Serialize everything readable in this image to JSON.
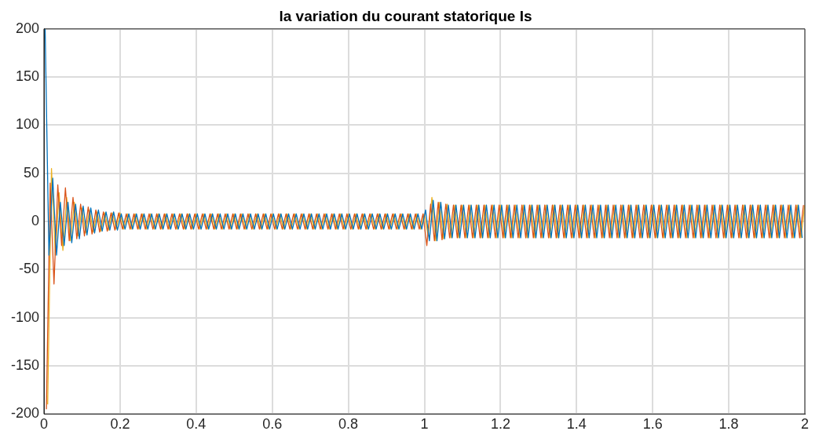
{
  "chart_data": {
    "type": "line",
    "title": "la variation du courant statorique Is",
    "xlim": [
      0,
      2
    ],
    "ylim": [
      -200,
      200
    ],
    "xticks": [
      0,
      0.2,
      0.4,
      0.6,
      0.8,
      1,
      1.2,
      1.4,
      1.6,
      1.8,
      2
    ],
    "yticks": [
      -200,
      -150,
      -100,
      -50,
      0,
      50,
      100,
      150,
      200
    ],
    "grid": true,
    "series": [
      {
        "color": "#0072bd",
        "x": [
          0.003,
          0.013,
          0.023,
          0.033,
          0.043,
          0.053,
          0.063,
          0.073,
          0.083,
          0.093,
          0.103,
          0.113,
          0.123,
          0.133,
          0.143,
          0.153,
          0.163,
          0.173,
          0.183,
          0.193,
          0.203,
          0.213,
          0.223,
          0.233,
          0.243,
          0.253,
          0.263,
          0.273,
          0.283,
          0.293,
          0.303,
          0.313,
          0.323,
          0.333,
          0.343,
          0.353,
          0.363,
          0.373,
          0.383,
          0.393,
          0.403,
          0.413,
          0.423,
          0.433,
          0.443,
          0.453,
          0.463,
          0.473,
          0.483,
          0.493,
          0.503,
          0.513,
          0.523,
          0.533,
          0.543,
          0.553,
          0.563,
          0.573,
          0.583,
          0.593,
          0.603,
          0.613,
          0.623,
          0.633,
          0.643,
          0.653,
          0.663,
          0.673,
          0.683,
          0.693,
          0.703,
          0.713,
          0.723,
          0.733,
          0.743,
          0.753,
          0.763,
          0.773,
          0.783,
          0.793,
          0.803,
          0.813,
          0.823,
          0.833,
          0.843,
          0.853,
          0.863,
          0.873,
          0.883,
          0.893,
          0.903,
          0.913,
          0.923,
          0.933,
          0.943,
          0.953,
          0.963,
          0.973,
          0.983,
          0.993,
          1.003,
          1.013,
          1.023,
          1.033,
          1.043,
          1.053,
          1.063,
          1.073,
          1.083,
          1.093,
          1.103,
          1.113,
          1.123,
          1.133,
          1.143,
          1.153,
          1.163,
          1.173,
          1.183,
          1.193,
          1.203,
          1.213,
          1.223,
          1.233,
          1.243,
          1.253,
          1.263,
          1.273,
          1.283,
          1.293,
          1.303,
          1.313,
          1.323,
          1.333,
          1.343,
          1.353,
          1.363,
          1.373,
          1.383,
          1.393,
          1.403,
          1.413,
          1.423,
          1.433,
          1.443,
          1.453,
          1.463,
          1.473,
          1.483,
          1.493,
          1.503,
          1.513,
          1.523,
          1.533,
          1.543,
          1.553,
          1.563,
          1.573,
          1.583,
          1.593,
          1.603,
          1.613,
          1.623,
          1.633,
          1.643,
          1.653,
          1.663,
          1.673,
          1.683,
          1.693,
          1.703,
          1.713,
          1.723,
          1.733,
          1.743,
          1.753,
          1.763,
          1.773,
          1.783,
          1.793,
          1.803,
          1.813,
          1.823,
          1.833,
          1.843,
          1.853,
          1.863,
          1.873,
          1.883,
          1.893,
          1.903,
          1.913,
          1.923,
          1.933,
          1.943,
          1.953,
          1.963,
          1.973,
          1.983,
          1.993
        ],
        "values": [
          200,
          -35,
          45,
          -35,
          20,
          -25,
          20,
          -22,
          18,
          -18,
          16,
          -14,
          14,
          -12,
          12,
          -10,
          10,
          -9,
          10,
          -9,
          8,
          -8,
          8,
          -8,
          8,
          -8,
          8,
          -8,
          8,
          -8,
          8,
          -8,
          8,
          -8,
          8,
          -8,
          8,
          -8,
          8,
          -8,
          8,
          -8,
          8,
          -8,
          8,
          -8,
          8,
          -8,
          8,
          -8,
          8,
          -8,
          8,
          -8,
          8,
          -8,
          8,
          -8,
          8,
          -8,
          8,
          -8,
          8,
          -8,
          8,
          -8,
          8,
          -8,
          8,
          -8,
          8,
          -8,
          8,
          -8,
          8,
          -8,
          8,
          -8,
          8,
          -8,
          8,
          -8,
          8,
          -8,
          8,
          -8,
          8,
          -8,
          8,
          -8,
          8,
          -8,
          8,
          -8,
          8,
          -8,
          8,
          -8,
          8,
          -8,
          12,
          -20,
          22,
          -20,
          20,
          -18,
          17,
          -17,
          17,
          -17,
          17,
          -17,
          17,
          -17,
          17,
          -17,
          17,
          -17,
          17,
          -17,
          17,
          -17,
          17,
          -17,
          17,
          -17,
          17,
          -17,
          17,
          -17,
          17,
          -17,
          17,
          -17,
          17,
          -17,
          17,
          -17,
          17,
          -17,
          17,
          -17,
          17,
          -17,
          17,
          -17,
          17,
          -17,
          17,
          -17,
          17,
          -17,
          17,
          -17,
          17,
          -17,
          17,
          -17,
          17,
          -17,
          17,
          -17,
          17,
          -17,
          17,
          -17,
          17,
          -17,
          17,
          -17,
          17,
          -17,
          17,
          -17,
          17,
          -17,
          17,
          -17,
          17,
          -17,
          17,
          -17,
          17,
          -17,
          17,
          -17,
          17,
          -17,
          17,
          -17,
          17,
          -17,
          17,
          -17,
          17,
          -17,
          17,
          -17,
          17,
          -17
        ]
      },
      {
        "color": "#d95319",
        "x": [
          0.0063,
          0.0163,
          0.0263,
          0.0363,
          0.0463,
          0.0563,
          0.0663,
          0.0763,
          0.0863,
          0.0963,
          0.1063,
          0.1163,
          0.1263,
          0.1363,
          0.1463,
          0.1563,
          0.1663,
          0.1763,
          0.1863,
          0.1963,
          0.2063,
          0.2163,
          0.2263,
          0.2363,
          0.2463,
          0.2563,
          0.2663,
          0.2763,
          0.2863,
          0.2963,
          0.3063,
          0.3163,
          0.3263,
          0.3363,
          0.3463,
          0.3563,
          0.3663,
          0.3763,
          0.3863,
          0.3963,
          0.4063,
          0.4163,
          0.4263,
          0.4363,
          0.4463,
          0.4563,
          0.4663,
          0.4763,
          0.4863,
          0.4963,
          0.5063,
          0.5163,
          0.5263,
          0.5363,
          0.5463,
          0.5563,
          0.5663,
          0.5763,
          0.5863,
          0.5963,
          0.6063,
          0.6163,
          0.6263,
          0.6363,
          0.6463,
          0.6563,
          0.6663,
          0.6763,
          0.6863,
          0.6963,
          0.7063,
          0.7163,
          0.7263,
          0.7363,
          0.7463,
          0.7563,
          0.7663,
          0.7763,
          0.7863,
          0.7963,
          0.8063,
          0.8163,
          0.8263,
          0.8363,
          0.8463,
          0.8563,
          0.8663,
          0.8763,
          0.8863,
          0.8963,
          0.9063,
          0.9163,
          0.9263,
          0.9363,
          0.9463,
          0.9563,
          0.9663,
          0.9763,
          0.9863,
          0.9963,
          1.0063,
          1.0163,
          1.0263,
          1.0363,
          1.0463,
          1.0563,
          1.0663,
          1.0763,
          1.0863,
          1.0963,
          1.1063,
          1.1163,
          1.1263,
          1.1363,
          1.1463,
          1.1563,
          1.1663,
          1.1763,
          1.1863,
          1.1963,
          1.2063,
          1.2163,
          1.2263,
          1.2363,
          1.2463,
          1.2563,
          1.2663,
          1.2763,
          1.2863,
          1.2963,
          1.3063,
          1.3163,
          1.3263,
          1.3363,
          1.3463,
          1.3563,
          1.3663,
          1.3763,
          1.3863,
          1.3963,
          1.4063,
          1.4163,
          1.4263,
          1.4363,
          1.4463,
          1.4563,
          1.4663,
          1.4763,
          1.4863,
          1.4963,
          1.5063,
          1.5163,
          1.5263,
          1.5363,
          1.5463,
          1.5563,
          1.5663,
          1.5763,
          1.5863,
          1.5963,
          1.6063,
          1.6163,
          1.6263,
          1.6363,
          1.6463,
          1.6563,
          1.6663,
          1.6763,
          1.6863,
          1.6963,
          1.7063,
          1.7163,
          1.7263,
          1.7363,
          1.7463,
          1.7563,
          1.7663,
          1.7763,
          1.7863,
          1.7963,
          1.8063,
          1.8163,
          1.8263,
          1.8363,
          1.8463,
          1.8563,
          1.8663,
          1.8763,
          1.8863,
          1.8963,
          1.9063,
          1.9163,
          1.9263,
          1.9363,
          1.9463,
          1.9563,
          1.9663,
          1.9763,
          1.9863,
          1.9963
        ],
        "values": [
          -195,
          40,
          -65,
          38,
          -25,
          35,
          -20,
          25,
          -18,
          18,
          -15,
          15,
          -13,
          12,
          -11,
          10,
          -10,
          9,
          -9,
          9,
          -8,
          8,
          -8,
          8,
          -8,
          8,
          -8,
          8,
          -8,
          8,
          -8,
          8,
          -8,
          8,
          -8,
          8,
          -8,
          8,
          -8,
          8,
          -8,
          8,
          -8,
          8,
          -8,
          8,
          -8,
          8,
          -8,
          8,
          -8,
          8,
          -8,
          8,
          -8,
          8,
          -8,
          8,
          -8,
          8,
          -8,
          8,
          -8,
          8,
          -8,
          8,
          -8,
          8,
          -8,
          8,
          -8,
          8,
          -8,
          8,
          -8,
          8,
          -8,
          8,
          -8,
          8,
          -8,
          8,
          -8,
          8,
          -8,
          8,
          -8,
          8,
          -8,
          8,
          -8,
          8,
          -8,
          8,
          -8,
          8,
          -8,
          8,
          -8,
          8,
          -25,
          18,
          -20,
          20,
          -19,
          18,
          -17,
          17,
          -17,
          17,
          -17,
          17,
          -17,
          17,
          -17,
          17,
          -17,
          17,
          -17,
          17,
          -17,
          17,
          -17,
          17,
          -17,
          17,
          -17,
          17,
          -17,
          17,
          -17,
          17,
          -17,
          17,
          -17,
          17,
          -17,
          17,
          -17,
          17,
          -17,
          17,
          -17,
          17,
          -17,
          17,
          -17,
          17,
          -17,
          17,
          -17,
          17,
          -17,
          17,
          -17,
          17,
          -17,
          17,
          -17,
          17,
          -17,
          17,
          -17,
          17,
          -17,
          17,
          -17,
          17,
          -17,
          17,
          -17,
          17,
          -17,
          17,
          -17,
          17,
          -17,
          17,
          -17,
          17,
          -17,
          17,
          -17,
          17,
          -17,
          17,
          -17,
          17,
          -17,
          17,
          -17,
          17,
          -17,
          17,
          -17,
          17,
          -17,
          17,
          -17,
          17
        ]
      },
      {
        "color": "#edb120",
        "x": [
          0.0097,
          0.0197,
          0.0297,
          0.0397,
          0.0497,
          0.0597,
          0.0697,
          0.0797,
          0.0897,
          0.0997,
          0.1097,
          0.1197,
          0.1297,
          0.1397,
          0.1497,
          0.1597,
          0.1697,
          0.1797,
          0.1897,
          0.1997,
          0.2097,
          0.2197,
          0.2297,
          0.2397,
          0.2497,
          0.2597,
          0.2697,
          0.2797,
          0.2897,
          0.2997,
          0.3097,
          0.3197,
          0.3297,
          0.3397,
          0.3497,
          0.3597,
          0.3697,
          0.3797,
          0.3897,
          0.3997,
          0.4097,
          0.4197,
          0.4297,
          0.4397,
          0.4497,
          0.4597,
          0.4697,
          0.4797,
          0.4897,
          0.4997,
          0.5097,
          0.5197,
          0.5297,
          0.5397,
          0.5497,
          0.5597,
          0.5697,
          0.5797,
          0.5897,
          0.5997,
          0.6097,
          0.6197,
          0.6297,
          0.6397,
          0.6497,
          0.6597,
          0.6697,
          0.6797,
          0.6897,
          0.6997,
          0.7097,
          0.7197,
          0.7297,
          0.7397,
          0.7497,
          0.7597,
          0.7697,
          0.7797,
          0.7897,
          0.7997,
          0.8097,
          0.8197,
          0.8297,
          0.8397,
          0.8497,
          0.8597,
          0.8697,
          0.8797,
          0.8897,
          0.8997,
          0.9097,
          0.9197,
          0.9297,
          0.9397,
          0.9497,
          0.9597,
          0.9697,
          0.9797,
          0.9897,
          0.9997,
          1.0097,
          1.0197,
          1.0297,
          1.0397,
          1.0497,
          1.0597,
          1.0697,
          1.0797,
          1.0897,
          1.0997,
          1.1097,
          1.1197,
          1.1297,
          1.1397,
          1.1497,
          1.1597,
          1.1697,
          1.1797,
          1.1897,
          1.1997,
          1.2097,
          1.2197,
          1.2297,
          1.2397,
          1.2497,
          1.2597,
          1.2697,
          1.2797,
          1.2897,
          1.2997,
          1.3097,
          1.3197,
          1.3297,
          1.3397,
          1.3497,
          1.3597,
          1.3697,
          1.3797,
          1.3897,
          1.3997,
          1.4097,
          1.4197,
          1.4297,
          1.4397,
          1.4497,
          1.4597,
          1.4697,
          1.4797,
          1.4897,
          1.4997,
          1.5097,
          1.5197,
          1.5297,
          1.5397,
          1.5497,
          1.5597,
          1.5697,
          1.5797,
          1.5897,
          1.5997,
          1.6097,
          1.6197,
          1.6297,
          1.6397,
          1.6497,
          1.6597,
          1.6697,
          1.6797,
          1.6897,
          1.6997,
          1.7097,
          1.7197,
          1.7297,
          1.7397,
          1.7497,
          1.7597,
          1.7697,
          1.7797,
          1.7897,
          1.7997,
          1.8097,
          1.8197,
          1.8297,
          1.8397,
          1.8497,
          1.8597,
          1.8697,
          1.8797,
          1.8897,
          1.8997,
          1.9097,
          1.9197,
          1.9297,
          1.9397,
          1.9497,
          1.9597,
          1.9697,
          1.9797,
          1.9897,
          1.9997
        ],
        "values": [
          -190,
          55,
          -35,
          30,
          -30,
          25,
          -20,
          20,
          -15,
          14,
          -12,
          12,
          -11,
          10,
          -10,
          9,
          -9,
          9,
          -8,
          9,
          -8,
          8,
          -8,
          8,
          -8,
          8,
          -8,
          8,
          -8,
          8,
          -8,
          8,
          -8,
          8,
          -8,
          8,
          -8,
          8,
          -8,
          8,
          -8,
          8,
          -8,
          8,
          -8,
          8,
          -8,
          8,
          -8,
          8,
          -8,
          8,
          -8,
          8,
          -8,
          8,
          -8,
          8,
          -8,
          8,
          -8,
          8,
          -8,
          8,
          -8,
          8,
          -8,
          8,
          -8,
          8,
          -8,
          8,
          -8,
          8,
          -8,
          8,
          -8,
          8,
          -8,
          8,
          -8,
          8,
          -8,
          8,
          -8,
          8,
          -8,
          8,
          -8,
          8,
          -8,
          8,
          -8,
          8,
          -8,
          8,
          -8,
          8,
          -8,
          8,
          -15,
          25,
          -20,
          20,
          -18,
          18,
          -17,
          17,
          -17,
          17,
          -17,
          17,
          -17,
          17,
          -17,
          17,
          -17,
          17,
          -17,
          17,
          -17,
          17,
          -17,
          17,
          -17,
          17,
          -17,
          17,
          -17,
          17,
          -17,
          17,
          -17,
          17,
          -17,
          17,
          -17,
          17,
          -17,
          17,
          -17,
          17,
          -17,
          17,
          -17,
          17,
          -17,
          17,
          -17,
          17,
          -17,
          17,
          -17,
          17,
          -17,
          17,
          -17,
          17,
          -17,
          17,
          -17,
          17,
          -17,
          17,
          -17,
          17,
          -17,
          17,
          -17,
          17,
          -17,
          17,
          -17,
          17,
          -17,
          17,
          -17,
          17,
          -17,
          17,
          -17,
          17,
          -17,
          17,
          -17,
          17,
          -17,
          17,
          -17,
          17,
          -17,
          17,
          -17,
          17,
          -17,
          17,
          -17,
          17,
          -17,
          17
        ]
      }
    ]
  }
}
